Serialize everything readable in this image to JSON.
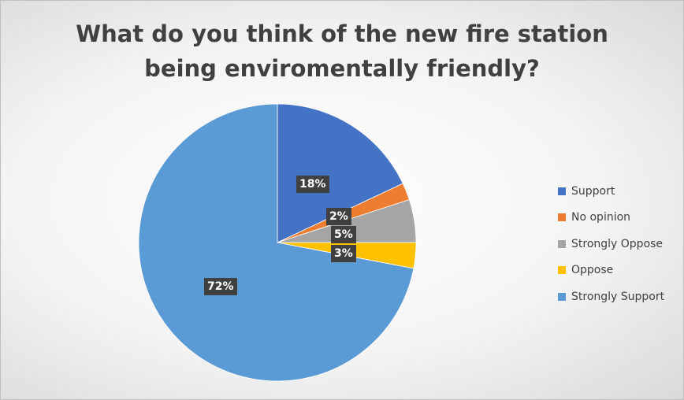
{
  "chart_data": {
    "type": "pie",
    "title_lines": [
      "What do you think of the new fire station",
      "being enviromentally friendly?"
    ],
    "start_angle_deg": 0,
    "direction": "clockwise",
    "legend_position": "right",
    "slices": [
      {
        "name": "Support",
        "value": 18,
        "label": "18%",
        "color": "#4472c4"
      },
      {
        "name": "No opinion",
        "value": 2,
        "label": "2%",
        "color": "#ed7d31"
      },
      {
        "name": "Strongly Oppose",
        "value": 5,
        "label": "5%",
        "color": "#a5a5a5"
      },
      {
        "name": "Oppose",
        "value": 3,
        "label": "3%",
        "color": "#ffc000"
      },
      {
        "name": "Strongly Support",
        "value": 72,
        "label": "72%",
        "color": "#5b9bd5"
      }
    ]
  }
}
